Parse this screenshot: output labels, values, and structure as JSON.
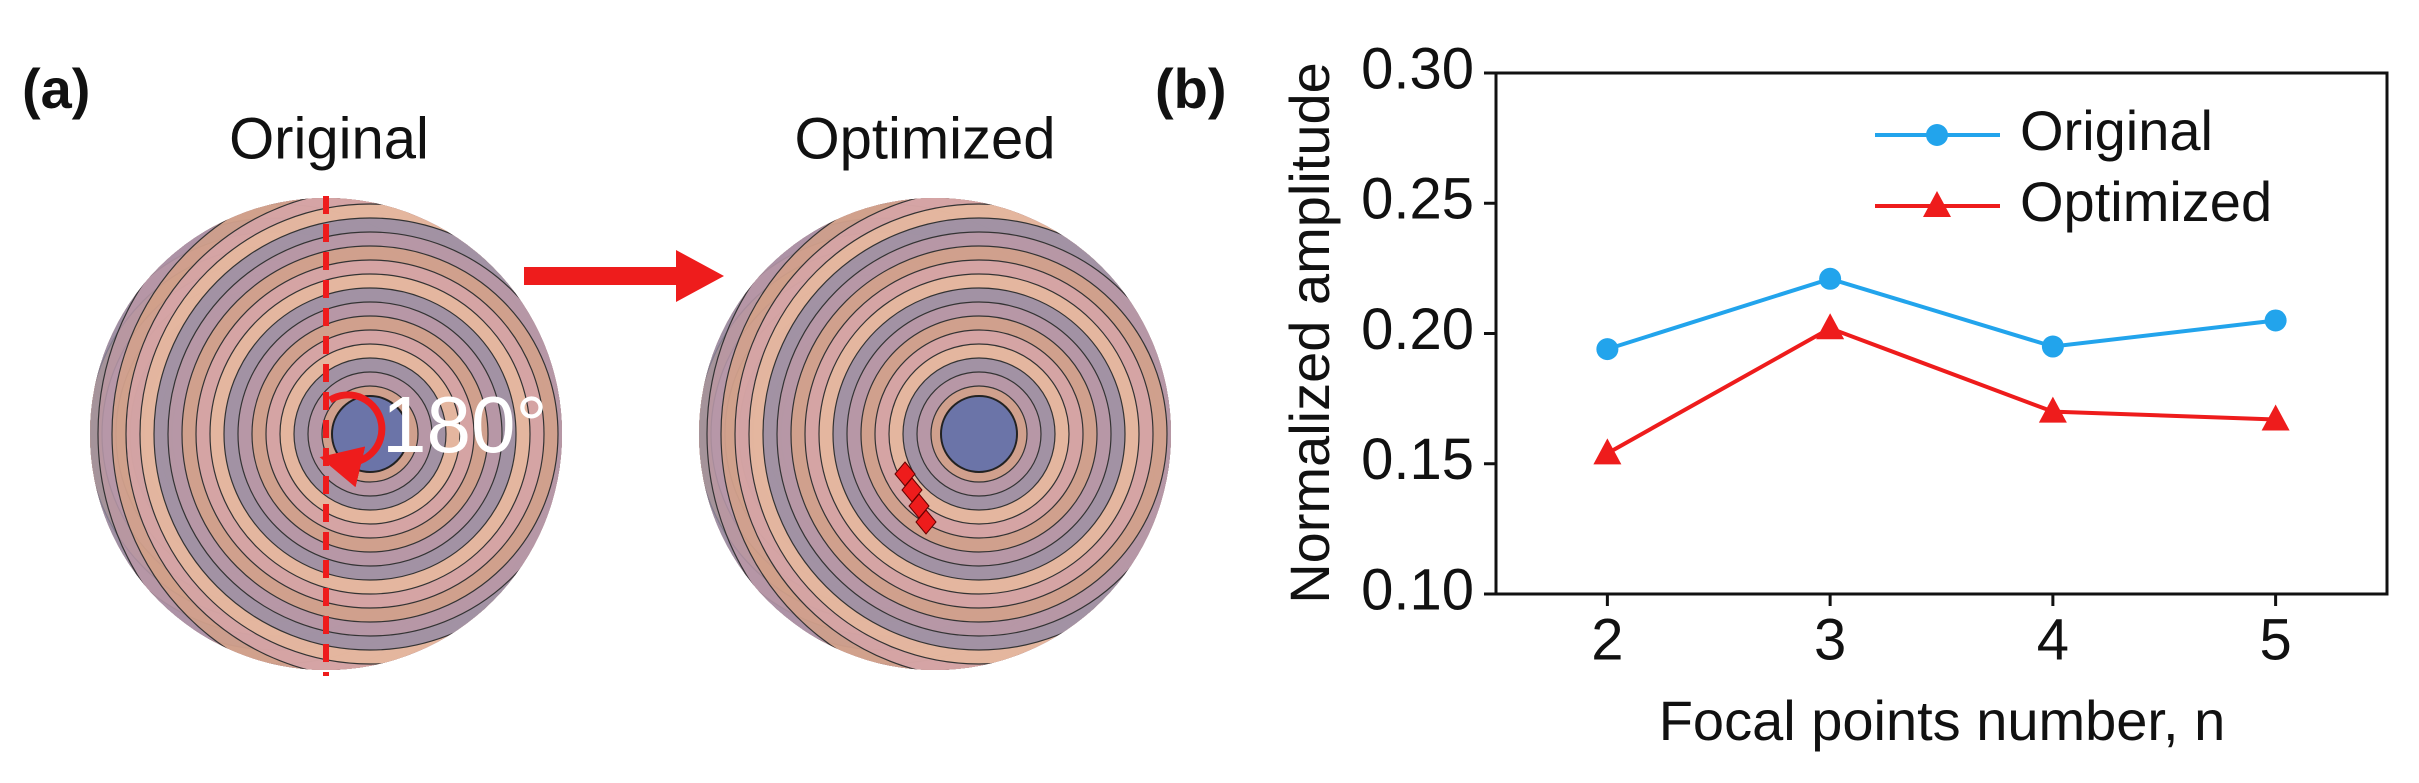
{
  "panel_a": {
    "label": "(a)",
    "titles": [
      "Original",
      "Optimized"
    ],
    "angle_label": "180°"
  },
  "chart_data": {
    "type": "line",
    "panel_label": "(b)",
    "x_label": "Focal points number, n",
    "y_label": "Normalized amplitude",
    "x": [
      2,
      3,
      4,
      5
    ],
    "series": [
      {
        "name": "Original",
        "color": "#22a4ec",
        "marker": "circle",
        "values": [
          0.194,
          0.221,
          0.195,
          0.205
        ]
      },
      {
        "name": "Optimized",
        "color": "#ee1c1c",
        "marker": "triangle",
        "values": [
          0.154,
          0.202,
          0.17,
          0.167
        ]
      }
    ],
    "xlim": [
      1.5,
      5.5
    ],
    "xticks": [
      2,
      3,
      4,
      5
    ],
    "ylim": [
      0.1,
      0.3
    ],
    "yticks": [
      {
        "value": 0.1,
        "label": "0.10"
      },
      {
        "value": 0.15,
        "label": "0.15"
      },
      {
        "value": 0.2,
        "label": "0.20"
      },
      {
        "value": 0.25,
        "label": "0.25"
      },
      {
        "value": 0.3,
        "label": "0.30"
      }
    ],
    "grid": false,
    "legend": "upper right"
  }
}
